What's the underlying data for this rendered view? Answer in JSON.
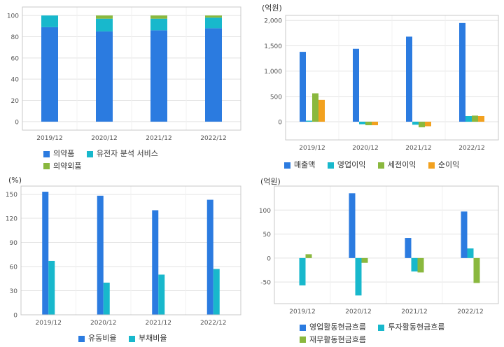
{
  "colors": {
    "blue": "#2b7be0",
    "cyan": "#18b8cc",
    "green": "#8ab83e",
    "orange": "#f2a11f",
    "grid": "#e3e3e3",
    "frame": "#c8c8c8"
  },
  "chart_data": [
    {
      "type": "bar",
      "stacked": true,
      "categories": [
        "2019/12",
        "2020/12",
        "2021/12",
        "2022/12"
      ],
      "series": [
        {
          "name": "의약품",
          "color": "blue",
          "values": [
            89,
            85,
            86,
            88
          ]
        },
        {
          "name": "유전자 분석 서비스",
          "color": "cyan",
          "values": [
            11,
            12,
            11,
            10
          ]
        },
        {
          "name": "의약외품",
          "color": "green",
          "values": [
            0,
            3,
            3,
            2
          ]
        }
      ],
      "ylim": [
        -8,
        108
      ],
      "yticks": [
        0,
        20,
        40,
        60,
        80,
        100
      ],
      "ytick_labels": [
        "0",
        "20",
        "40",
        "60",
        "80",
        "100"
      ],
      "grid": true,
      "legend": "bottom",
      "unit": ""
    },
    {
      "type": "bar",
      "categories": [
        "2019/12",
        "2020/12",
        "2021/12",
        "2022/12"
      ],
      "series": [
        {
          "name": "매출액",
          "color": "blue",
          "values": [
            1380,
            1440,
            1680,
            1950
          ]
        },
        {
          "name": "영업이익",
          "color": "cyan",
          "values": [
            20,
            -50,
            -60,
            110
          ]
        },
        {
          "name": "세전이익",
          "color": "green",
          "values": [
            560,
            -70,
            -110,
            120
          ]
        },
        {
          "name": "순이익",
          "color": "orange",
          "values": [
            430,
            -70,
            -90,
            110
          ]
        }
      ],
      "ylim": [
        -360,
        2100
      ],
      "yticks": [
        0,
        500,
        1000,
        1500,
        2000
      ],
      "ytick_labels": [
        "0",
        "500",
        "1,000",
        "1,500",
        "2,000"
      ],
      "grid": true,
      "legend": "bottom",
      "unit": "(억원)"
    },
    {
      "type": "bar",
      "categories": [
        "2019/12",
        "2020/12",
        "2021/12",
        "2022/12"
      ],
      "series": [
        {
          "name": "유동비율",
          "color": "blue",
          "values": [
            153,
            148,
            130,
            143
          ]
        },
        {
          "name": "부채비율",
          "color": "cyan",
          "values": [
            67,
            40,
            50,
            57
          ]
        }
      ],
      "ylim": [
        0,
        160
      ],
      "yticks": [
        0,
        30,
        60,
        90,
        120,
        150
      ],
      "ytick_labels": [
        "0",
        "30",
        "60",
        "90",
        "120",
        "150"
      ],
      "grid": true,
      "legend": "bottom",
      "unit": "(%)"
    },
    {
      "type": "bar",
      "categories": [
        "2019/12",
        "2020/12",
        "2021/12",
        "2022/12"
      ],
      "series": [
        {
          "name": "영업활동현금흐름",
          "color": "blue",
          "values": [
            0,
            135,
            42,
            97
          ]
        },
        {
          "name": "투자활동현금흐름",
          "color": "cyan",
          "values": [
            -57,
            -78,
            -28,
            20
          ]
        },
        {
          "name": "재무활동현금흐름",
          "color": "green",
          "values": [
            8,
            -10,
            -30,
            -52
          ]
        }
      ],
      "ylim": [
        -95,
        150
      ],
      "yticks": [
        -50,
        0,
        50,
        100
      ],
      "ytick_labels": [
        "-50",
        "0",
        "50",
        "100"
      ],
      "grid": true,
      "legend": "bottom",
      "unit": "(억원)"
    }
  ]
}
